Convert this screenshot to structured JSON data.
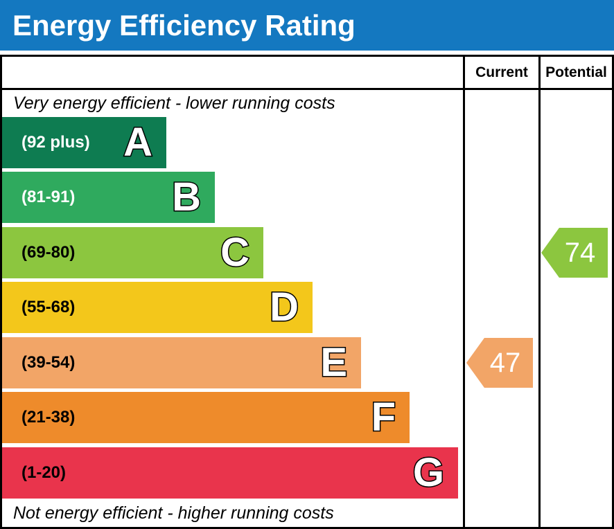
{
  "title": "Energy Efficiency Rating",
  "columns": {
    "current": "Current",
    "potential": "Potential"
  },
  "captions": {
    "top": "Very energy efficient - lower running costs",
    "bottom": "Not energy efficient - higher running costs"
  },
  "bands": [
    {
      "letter": "A",
      "range": "(92 plus)",
      "color": "#0e7c51",
      "label_color": "#ffffff"
    },
    {
      "letter": "B",
      "range": "(81-91)",
      "color": "#2faa5e",
      "label_color": "#ffffff"
    },
    {
      "letter": "C",
      "range": "(69-80)",
      "color": "#8cc63f",
      "label_color": "#000000"
    },
    {
      "letter": "D",
      "range": "(55-68)",
      "color": "#f3c71b",
      "label_color": "#000000"
    },
    {
      "letter": "E",
      "range": "(39-54)",
      "color": "#f2a567",
      "label_color": "#000000"
    },
    {
      "letter": "F",
      "range": "(21-38)",
      "color": "#ee8b2b",
      "label_color": "#000000"
    },
    {
      "letter": "G",
      "range": "(1-20)",
      "color": "#e9344c",
      "label_color": "#000000"
    }
  ],
  "ratings": {
    "current": {
      "value": "47",
      "band": "E",
      "color": "#f2a567"
    },
    "potential": {
      "value": "74",
      "band": "C",
      "color": "#8cc63f"
    }
  },
  "colors": {
    "header_blue": "#1478c0",
    "border_black": "#000000"
  },
  "chart_data": {
    "type": "bar",
    "title": "Energy Efficiency Rating",
    "orientation": "horizontal",
    "categories": [
      "A",
      "B",
      "C",
      "D",
      "E",
      "F",
      "G"
    ],
    "band_ranges": [
      "92 plus",
      "81-91",
      "69-80",
      "55-68",
      "39-54",
      "21-38",
      "1-20"
    ],
    "bar_relative_lengths": [
      0.36,
      0.47,
      0.57,
      0.68,
      0.79,
      0.89,
      1.0
    ],
    "bar_colors": [
      "#0e7c51",
      "#2faa5e",
      "#8cc63f",
      "#f3c71b",
      "#f2a567",
      "#ee8b2b",
      "#e9344c"
    ],
    "markers": [
      {
        "name": "Current",
        "value": 47,
        "band": "E",
        "color": "#f2a567"
      },
      {
        "name": "Potential",
        "value": 74,
        "band": "C",
        "color": "#8cc63f"
      }
    ],
    "annotations": [
      "Very energy efficient - lower running costs",
      "Not energy efficient - higher running costs"
    ],
    "legend_position": "none",
    "grid": false
  }
}
